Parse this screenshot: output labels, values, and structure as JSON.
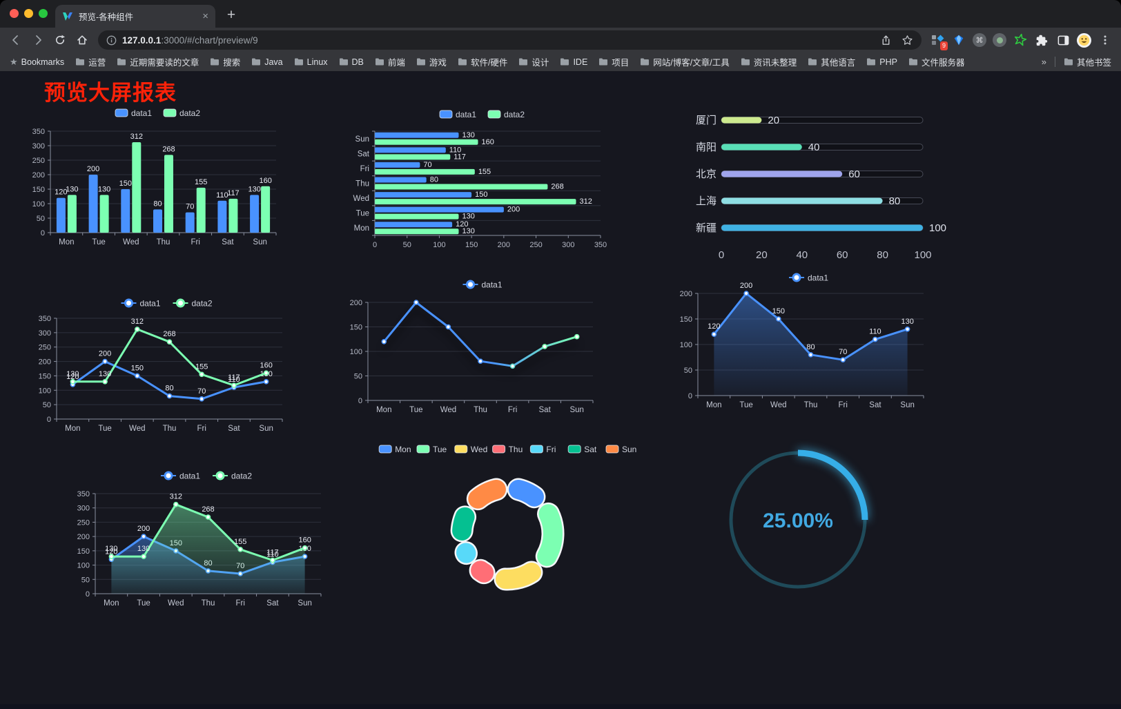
{
  "browser": {
    "traffic_lights": [
      "#ff5f57",
      "#febc2e",
      "#28c840"
    ],
    "tab": {
      "title": "预览-各种组件",
      "close": "×",
      "new_tab": "+"
    },
    "nav": {
      "url_host": "127.0.0.1",
      "url_rest": ":3000/#/chart/preview/9"
    },
    "ext_badge": "9",
    "bookmarks_bar": {
      "star_label": "Bookmarks",
      "folders": [
        "运营",
        "近期需要读的文章",
        "搜索",
        "Java",
        "Linux",
        "DB",
        "前端",
        "游戏",
        "软件/硬件",
        "设计",
        "IDE",
        "项目",
        "网站/博客/文章/工具",
        "资讯未整理",
        "其他语言",
        "PHP",
        "文件服务器"
      ],
      "overflow": "»",
      "other": "其他书签"
    }
  },
  "page": {
    "title": "预览大屏报表",
    "title_color": "#fb2209",
    "background": "#16171f"
  },
  "chart_data": [
    {
      "id": "bar-grouped",
      "type": "bar",
      "categories": [
        "Mon",
        "Tue",
        "Wed",
        "Thu",
        "Fri",
        "Sat",
        "Sun"
      ],
      "series": [
        {
          "name": "data1",
          "color": "#4992ff",
          "values": [
            120,
            200,
            150,
            80,
            70,
            110,
            130
          ]
        },
        {
          "name": "data2",
          "color": "#7cffb2",
          "values": [
            130,
            130,
            312,
            268,
            155,
            117,
            160
          ]
        }
      ],
      "ylim": [
        0,
        350
      ],
      "ytick": 50,
      "legend_position": "top",
      "grid": true
    },
    {
      "id": "bar-horizontal",
      "type": "hbar",
      "categories": [
        "Mon",
        "Tue",
        "Wed",
        "Thu",
        "Fri",
        "Sat",
        "Sun"
      ],
      "series": [
        {
          "name": "data1",
          "color": "#4992ff",
          "values": [
            120,
            200,
            150,
            80,
            70,
            110,
            130
          ]
        },
        {
          "name": "data2",
          "color": "#7cffb2",
          "values": [
            130,
            130,
            312,
            268,
            155,
            117,
            160
          ]
        }
      ],
      "xlim": [
        0,
        350
      ],
      "xtick": 50,
      "legend_position": "top",
      "grid": true
    },
    {
      "id": "city-progress",
      "type": "progress",
      "max": 100,
      "axis_ticks": [
        0,
        20,
        40,
        60,
        80,
        100
      ],
      "items": [
        {
          "label": "厦门",
          "value": 20,
          "color": "#cdea8e"
        },
        {
          "label": "南阳",
          "value": 40,
          "color": "#59dfb6"
        },
        {
          "label": "北京",
          "value": 60,
          "color": "#9fa4ec"
        },
        {
          "label": "上海",
          "value": 80,
          "color": "#8edee3"
        },
        {
          "label": "新疆",
          "value": 100,
          "color": "#3fb1e3"
        }
      ]
    },
    {
      "id": "line-two-series",
      "type": "line",
      "categories": [
        "Mon",
        "Tue",
        "Wed",
        "Thu",
        "Fri",
        "Sat",
        "Sun"
      ],
      "series": [
        {
          "name": "data1",
          "color": "#4992ff",
          "values": [
            120,
            200,
            150,
            80,
            70,
            110,
            130
          ]
        },
        {
          "name": "data2",
          "color": "#7cffb2",
          "values": [
            130,
            130,
            312,
            268,
            155,
            117,
            160
          ]
        }
      ],
      "ylim": [
        0,
        350
      ],
      "ytick": 50,
      "show_labels": true,
      "legend_position": "top"
    },
    {
      "id": "line-gradient",
      "type": "line",
      "categories": [
        "Mon",
        "Tue",
        "Wed",
        "Thu",
        "Fri",
        "Sat",
        "Sun"
      ],
      "series": [
        {
          "name": "data1",
          "color": "#4992ff",
          "gradient": [
            "#4992ff",
            "#7cffb2"
          ],
          "values": [
            120,
            200,
            150,
            80,
            70,
            110,
            130
          ]
        }
      ],
      "ylim": [
        0,
        200
      ],
      "ytick": 50,
      "show_labels": false,
      "shadow": true,
      "legend_position": "top"
    },
    {
      "id": "line-area-blue",
      "type": "line",
      "area": true,
      "categories": [
        "Mon",
        "Tue",
        "Wed",
        "Thu",
        "Fri",
        "Sat",
        "Sun"
      ],
      "series": [
        {
          "name": "data1",
          "color": "#4992ff",
          "values": [
            120,
            200,
            150,
            80,
            70,
            110,
            130
          ]
        }
      ],
      "ylim": [
        0,
        200
      ],
      "ytick": 50,
      "show_labels": true,
      "legend_position": "top"
    },
    {
      "id": "line-area-two",
      "type": "line",
      "area": true,
      "categories": [
        "Mon",
        "Tue",
        "Wed",
        "Thu",
        "Fri",
        "Sat",
        "Sun"
      ],
      "series": [
        {
          "name": "data1",
          "color": "#4992ff",
          "values": [
            120,
            200,
            150,
            80,
            70,
            110,
            130
          ]
        },
        {
          "name": "data2",
          "color": "#7cffb2",
          "values": [
            130,
            130,
            312,
            268,
            155,
            117,
            160
          ]
        }
      ],
      "ylim": [
        0,
        350
      ],
      "ytick": 50,
      "show_labels": true,
      "legend_position": "top"
    },
    {
      "id": "donut-week",
      "type": "donut",
      "legend_position": "top",
      "items": [
        {
          "label": "Mon",
          "value": 120,
          "color": "#4992ff"
        },
        {
          "label": "Tue",
          "value": 200,
          "color": "#7cffb2"
        },
        {
          "label": "Wed",
          "value": 150,
          "color": "#fddd60"
        },
        {
          "label": "Thu",
          "value": 80,
          "color": "#ff6e76"
        },
        {
          "label": "Fri",
          "value": 70,
          "color": "#58d9f9"
        },
        {
          "label": "Sat",
          "value": 110,
          "color": "#05c091"
        },
        {
          "label": "Sun",
          "value": 130,
          "color": "#ff8a45"
        }
      ]
    },
    {
      "id": "gauge-percent",
      "type": "gauge",
      "value": 25,
      "display": "25.00%",
      "color": "#36aee8",
      "track_color": "#1f4a59",
      "text_color": "#41a9e2"
    }
  ]
}
